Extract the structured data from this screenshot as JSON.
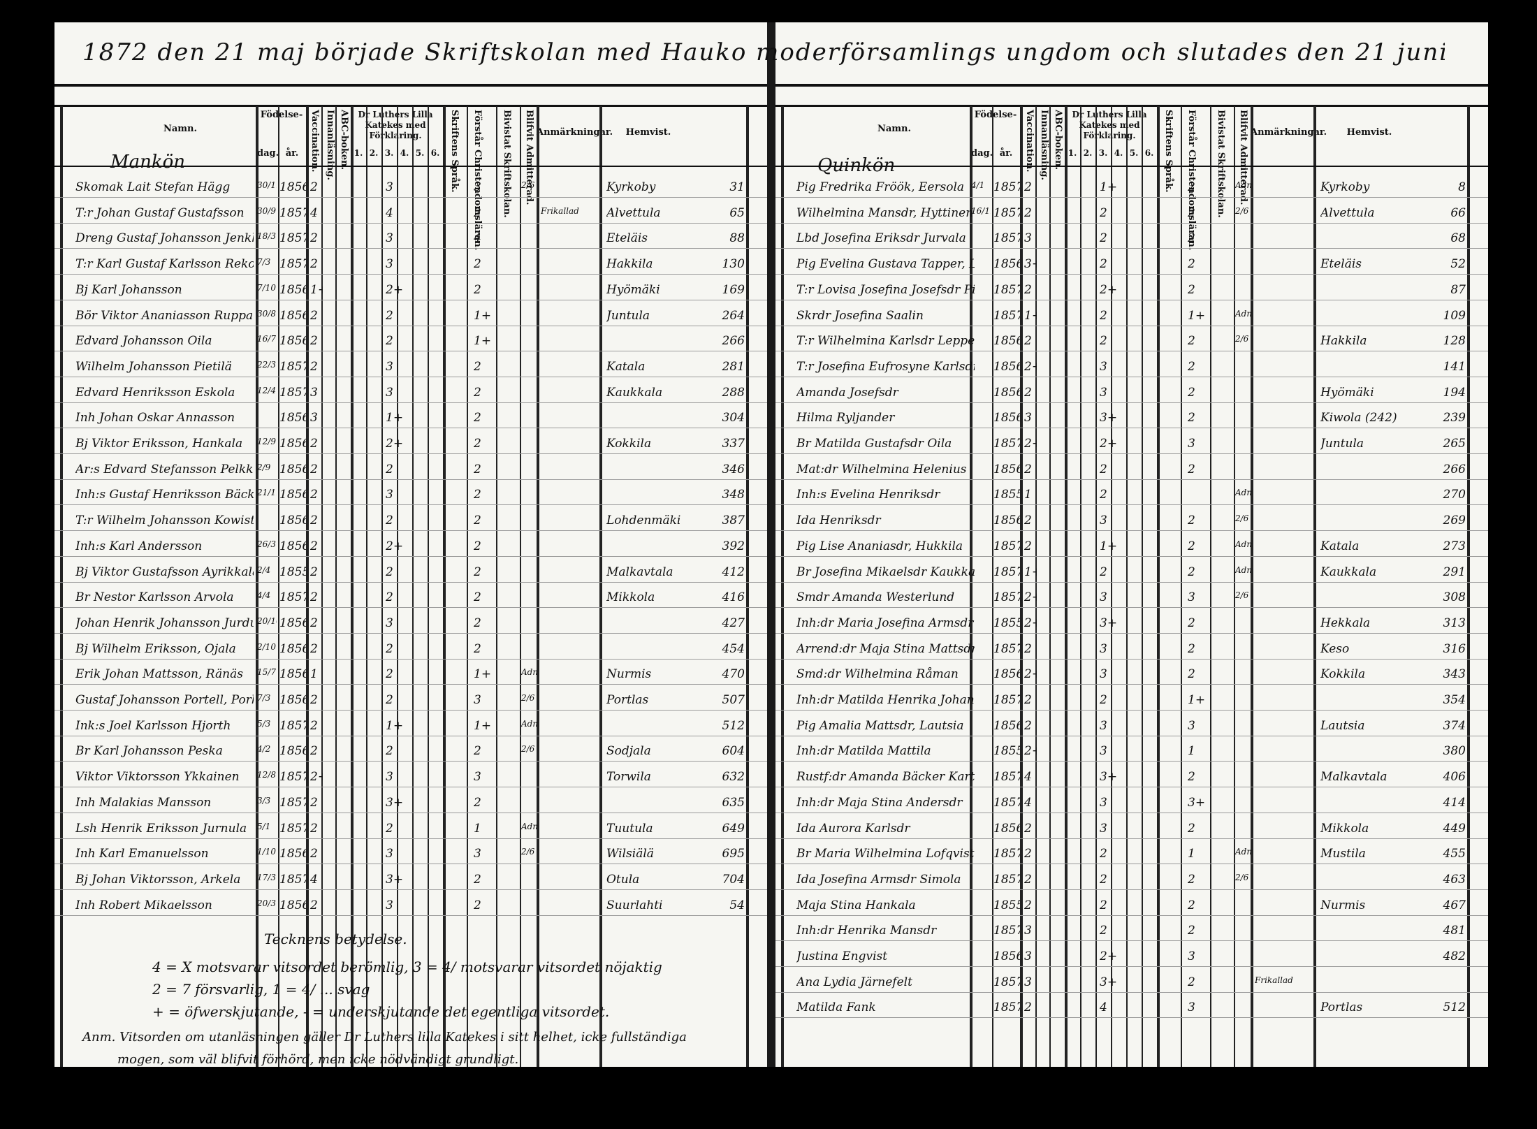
{
  "title": "1872 den 21 maj började Skriftskolan med Hauko moderförsamlings ungdom och slutades den 21 juni samma år.",
  "headers": {
    "namn": "Namn.",
    "fodelse": "Födelse-",
    "dag": "dag.",
    "ar": "år.",
    "vaccination": "Vaccination.",
    "inmalasning": "Innanläsning.",
    "abc": "ABC-boken.",
    "katekes": "Dr Luthers Lilla Katekes med Förklaring.",
    "kat_cols": [
      "1.",
      "2.",
      "3.",
      "4.",
      "5.",
      "6."
    ],
    "skriftens": "Skriftens Språk.",
    "forstar": "Förstår Christendomsläran.",
    "bivistat": "Bivistat Skriftskolan.",
    "blifvit": "Blifvit Admitterad.",
    "anmarkningar": "Anmärkningar.",
    "hemvist": "Hemvist."
  },
  "left": {
    "section": "Mankön",
    "rows": [
      {
        "name": "Skomak Lait Stefan Hägg",
        "dag": "30/11",
        "ar": "1856",
        "inn": "2",
        "kat": "3",
        "forst": "3",
        "adm": "2/6",
        "hemvist": "Kyrkoby",
        "nr": "31"
      },
      {
        "name": "T:r Johan Gustaf Gustafsson",
        "dag": "30/9",
        "ar": "1857",
        "inn": "4",
        "kat": "4",
        "forst": "2",
        "adm": "",
        "anm": "Frikallad",
        "hemvist": "Alvettula",
        "nr": "65"
      },
      {
        "name": "Dreng Gustaf Johansson Jenkka",
        "dag": "18/3",
        "ar": "1857",
        "inn": "2",
        "kat": "3",
        "forst": "4",
        "adm": "",
        "hemvist": "Eteläis",
        "nr": "88"
      },
      {
        "name": "T:r Karl Gustaf Karlsson Rekola",
        "dag": "7/3",
        "ar": "1857",
        "inn": "2",
        "kat": "3",
        "forst": "2",
        "adm": "",
        "hemvist": "Hakkila",
        "nr": "130"
      },
      {
        "name": "Bj Karl Johansson",
        "dag": "7/10",
        "ar": "1856",
        "inn": "1+",
        "kat": "2+",
        "forst": "2",
        "adm": "",
        "hemvist": "Hyömäki",
        "nr": "169"
      },
      {
        "name": "Bör Viktor Ananiasson Ruppa",
        "dag": "30/8",
        "ar": "1856",
        "inn": "2",
        "kat": "2",
        "forst": "1+",
        "adm": "",
        "hemvist": "Juntula",
        "nr": "264"
      },
      {
        "name": "Edvard Johansson Oila",
        "dag": "16/7",
        "ar": "1856",
        "inn": "2",
        "kat": "2",
        "forst": "1+",
        "adm": "",
        "hemvist": "",
        "nr": "266"
      },
      {
        "name": "Wilhelm Johansson Pietilä",
        "dag": "22/3",
        "ar": "1857",
        "inn": "2",
        "kat": "3",
        "forst": "2",
        "adm": "",
        "hemvist": "Katala",
        "nr": "281"
      },
      {
        "name": "Edvard Henriksson Eskola",
        "dag": "12/4",
        "ar": "1857",
        "inn": "3",
        "kat": "3",
        "forst": "2",
        "adm": "",
        "hemvist": "Kaukkala",
        "nr": "288"
      },
      {
        "name": "Inh Johan Oskar Annasson",
        "dag": "",
        "ar": "1856",
        "inn": "3",
        "kat": "1+",
        "forst": "2",
        "adm": "",
        "hemvist": "",
        "nr": "304"
      },
      {
        "name": "Bj Viktor Eriksson, Hankala",
        "dag": "12/9",
        "ar": "1856",
        "inn": "2",
        "kat": "2+",
        "forst": "2",
        "adm": "",
        "hemvist": "Kokkila",
        "nr": "337"
      },
      {
        "name": "Ar:s Edvard Stefansson Pelkka",
        "dag": "2/9",
        "ar": "1856",
        "inn": "2",
        "kat": "2",
        "forst": "2",
        "adm": "",
        "hemvist": "",
        "nr": "346"
      },
      {
        "name": "Inh:s Gustaf Henriksson Bäckström",
        "dag": "21/11",
        "ar": "1856",
        "inn": "2",
        "kat": "3",
        "forst": "2",
        "adm": "",
        "hemvist": "",
        "nr": "348"
      },
      {
        "name": "T:r Wilhelm Johansson Kowisto",
        "dag": "",
        "ar": "1856",
        "inn": "2",
        "kat": "2",
        "forst": "2",
        "adm": "",
        "hemvist": "Lohdenmäki",
        "nr": "387"
      },
      {
        "name": "Inh:s Karl Andersson",
        "dag": "26/3",
        "ar": "1856",
        "inn": "2",
        "kat": "2+",
        "forst": "2",
        "adm": "",
        "hemvist": "",
        "nr": "392"
      },
      {
        "name": "Bj Viktor Gustafsson Ayrikkala",
        "dag": "2/4",
        "ar": "1855",
        "inn": "2",
        "kat": "2",
        "forst": "2",
        "adm": "",
        "hemvist": "Malkavtala",
        "nr": "412"
      },
      {
        "name": "Br Nestor Karlsson Arvola",
        "dag": "4/4",
        "ar": "1857",
        "inn": "2",
        "kat": "2",
        "forst": "2",
        "adm": "",
        "hemvist": "Mikkola",
        "nr": "416"
      },
      {
        "name": "Johan Henrik Johansson Jurdula",
        "dag": "20/10",
        "ar": "1856",
        "inn": "2",
        "kat": "3",
        "forst": "2",
        "adm": "",
        "hemvist": "",
        "nr": "427"
      },
      {
        "name": "Bj Wilhelm Eriksson, Ojala",
        "dag": "2/10",
        "ar": "1856",
        "inn": "2",
        "kat": "2",
        "forst": "2",
        "adm": "",
        "hemvist": "",
        "nr": "454"
      },
      {
        "name": "Erik Johan Mattsson, Ränäs",
        "dag": "15/7",
        "ar": "1856",
        "inn": "1",
        "kat": "2",
        "forst": "1+",
        "adm": "Adm.",
        "hemvist": "Nurmis",
        "nr": "470"
      },
      {
        "name": "Gustaf Johansson Portell, Porkkala",
        "dag": "7/3",
        "ar": "1856",
        "inn": "2",
        "kat": "2",
        "forst": "3",
        "adm": "2/6",
        "hemvist": "Portlas",
        "nr": "507"
      },
      {
        "name": "Ink:s Joel Karlsson Hjorth",
        "dag": "5/3",
        "ar": "1857",
        "inn": "2",
        "kat": "1+",
        "forst": "1+",
        "adm": "Adm.",
        "hemvist": "",
        "nr": "512"
      },
      {
        "name": "Br Karl Johansson Peska",
        "dag": "4/2",
        "ar": "1856",
        "inn": "2",
        "kat": "2",
        "forst": "2",
        "adm": "2/6",
        "hemvist": "Sodjala",
        "nr": "604"
      },
      {
        "name": "Viktor Viktorsson Ykkainen",
        "dag": "12/8",
        "ar": "1857",
        "inn": "2+",
        "kat": "3",
        "forst": "3",
        "adm": "",
        "hemvist": "Torwila",
        "nr": "632"
      },
      {
        "name": "Inh Malakias Mansson",
        "dag": "3/3",
        "ar": "1857",
        "inn": "2",
        "kat": "3+",
        "forst": "2",
        "adm": "",
        "hemvist": "",
        "nr": "635"
      },
      {
        "name": "Lsh Henrik Eriksson Jurnula",
        "dag": "5/1",
        "ar": "1857",
        "inn": "2",
        "kat": "2",
        "forst": "1",
        "adm": "Adm.",
        "hemvist": "Tuutula",
        "nr": "649"
      },
      {
        "name": "Inh Karl Emanuelsson",
        "dag": "1/10",
        "ar": "1856",
        "inn": "2",
        "kat": "3",
        "forst": "3",
        "adm": "2/6",
        "hemvist": "Wilsiälä",
        "nr": "695"
      },
      {
        "name": "Bj Johan Viktorsson, Arkela",
        "dag": "17/3",
        "ar": "1857",
        "inn": "4",
        "kat": "3+",
        "forst": "2",
        "adm": "",
        "hemvist": "Otula",
        "nr": "704"
      },
      {
        "name": "Inh Robert Mikaelsson",
        "dag": "20/3",
        "ar": "1856",
        "inn": "2",
        "kat": "3",
        "forst": "2",
        "adm": "",
        "hemvist": "Suurlahti",
        "nr": "54"
      }
    ],
    "notes": [
      "Tecknens betydelse.",
      "4 = X motsvarar vitsordet berömlig, 3 = 4/ motsvarar vitsordet nöjaktig",
      "2 = 7 försvarlig, 1 = 4/ ... svag",
      "+ = öfwerskjutande, - = underskjutande det egentliga vitsordet.",
      "Anm. Vitsorden om utanläsningen gäller Dr Luthers lilla Katekes i sitt helhet, icke fullständiga",
      "mogen, som väl blifvit förhörd, men icke nödvändigt grundligt."
    ]
  },
  "right": {
    "section": "Quinkön",
    "rows": [
      {
        "name": "Pig Fredrika Fröök, Eersola",
        "dag": "4/1",
        "ar": "1857",
        "inn": "2",
        "kat": "1+",
        "forst": "2",
        "adm": "Adm.",
        "hemvist": "Kyrkoby",
        "nr": "8"
      },
      {
        "name": "Wilhelmina Mansdr, Hyttinen",
        "dag": "16/11",
        "ar": "1857",
        "inn": "2",
        "kat": "2",
        "forst": "2",
        "adm": "2/6",
        "hemvist": "Alvettula",
        "nr": "66"
      },
      {
        "name": "Lbd Josefina Eriksdr Jurvala",
        "dag": "",
        "ar": "1857",
        "inn": "3",
        "kat": "2",
        "forst": "2",
        "adm": "",
        "hemvist": "",
        "nr": "68"
      },
      {
        "name": "Pig Evelina Gustava Tapper, Laskala",
        "dag": "",
        "ar": "1856",
        "inn": "3+",
        "kat": "2",
        "forst": "2",
        "adm": "",
        "hemvist": "Eteläis",
        "nr": "52"
      },
      {
        "name": "T:r Lovisa Josefina Josefsdr Pietilä",
        "dag": "",
        "ar": "1857",
        "inn": "2",
        "kat": "2+",
        "forst": "2",
        "adm": "",
        "hemvist": "",
        "nr": "87"
      },
      {
        "name": "Skrdr Josefina Saalin",
        "dag": "",
        "ar": "1857",
        "inn": "1+",
        "kat": "2",
        "forst": "1+",
        "adm": "Adm.",
        "hemvist": "",
        "nr": "109"
      },
      {
        "name": "T:r Wilhelmina Karlsdr Leppen",
        "dag": "",
        "ar": "1856",
        "inn": "2",
        "kat": "2",
        "forst": "2",
        "adm": "2/6",
        "hemvist": "Hakkila",
        "nr": "128"
      },
      {
        "name": "T:r Josefina Eufrosyne Karlsdr",
        "dag": "",
        "ar": "1856",
        "inn": "2+",
        "kat": "3",
        "forst": "2",
        "adm": "",
        "hemvist": "",
        "nr": "141"
      },
      {
        "name": "Amanda Josefsdr",
        "dag": "",
        "ar": "1856",
        "inn": "2",
        "kat": "3",
        "forst": "2",
        "adm": "",
        "hemvist": "Hyömäki",
        "nr": "194"
      },
      {
        "name": "Hilma Ryljander",
        "dag": "",
        "ar": "1856",
        "inn": "3",
        "kat": "3+",
        "forst": "2",
        "adm": "",
        "hemvist": "Kiwola (242)",
        "nr": "239"
      },
      {
        "name": "Br Matilda Gustafsdr Oila",
        "dag": "",
        "ar": "1857",
        "inn": "2+",
        "kat": "2+",
        "forst": "3",
        "adm": "",
        "hemvist": "Juntula",
        "nr": "265"
      },
      {
        "name": "Mat:dr Wilhelmina Helenius",
        "dag": "",
        "ar": "1856",
        "inn": "2",
        "kat": "2",
        "forst": "2",
        "adm": "",
        "hemvist": "",
        "nr": "266"
      },
      {
        "name": "Inh:s Evelina Henriksdr",
        "dag": "",
        "ar": "1855",
        "inn": "1",
        "kat": "2",
        "forst": "",
        "adm": "Adm.",
        "hemvist": "",
        "nr": "270"
      },
      {
        "name": "Ida Henriksdr",
        "dag": "",
        "ar": "1856",
        "inn": "2",
        "kat": "3",
        "forst": "2",
        "adm": "2/6",
        "hemvist": "",
        "nr": "269"
      },
      {
        "name": "Pig Lise Ananiasdr, Hukkila",
        "dag": "",
        "ar": "1857",
        "inn": "2",
        "kat": "1+",
        "forst": "2",
        "adm": "Adm.",
        "hemvist": "Katala",
        "nr": "273"
      },
      {
        "name": "Br Josefina Mikaelsdr Kaukkala",
        "dag": "",
        "ar": "1857",
        "inn": "1+",
        "kat": "2",
        "forst": "2",
        "adm": "Adm.",
        "hemvist": "Kaukkala",
        "nr": "291"
      },
      {
        "name": "Smdr Amanda Westerlund",
        "dag": "",
        "ar": "1857",
        "inn": "2+",
        "kat": "3",
        "forst": "3",
        "adm": "2/6",
        "hemvist": "",
        "nr": "308"
      },
      {
        "name": "Inh:dr Maria Josefina Armsdr",
        "dag": "",
        "ar": "1855",
        "inn": "2+",
        "kat": "3+",
        "forst": "2",
        "adm": "",
        "hemvist": "Hekkala",
        "nr": "313"
      },
      {
        "name": "Arrend:dr Maja Stina Mattsdr",
        "dag": "",
        "ar": "1857",
        "inn": "2",
        "kat": "3",
        "forst": "2",
        "adm": "",
        "hemvist": "Keso",
        "nr": "316"
      },
      {
        "name": "Smd:dr Wilhelmina Råman",
        "dag": "",
        "ar": "1856",
        "inn": "2+",
        "kat": "3",
        "forst": "2",
        "adm": "",
        "hemvist": "Kokkila",
        "nr": "343"
      },
      {
        "name": "Inh:dr Matilda Henrika Johansdr",
        "dag": "",
        "ar": "1857",
        "inn": "2",
        "kat": "2",
        "forst": "1+",
        "adm": "",
        "hemvist": "",
        "nr": "354"
      },
      {
        "name": "Pig Amalia Mattsdr, Lautsia",
        "dag": "",
        "ar": "1856",
        "inn": "2",
        "kat": "3",
        "forst": "3",
        "adm": "",
        "hemvist": "Lautsia",
        "nr": "374"
      },
      {
        "name": "Inh:dr Matilda Mattila",
        "dag": "",
        "ar": "1855",
        "inn": "2+",
        "kat": "3",
        "forst": "1",
        "adm": "",
        "hemvist": "",
        "nr": "380"
      },
      {
        "name": "Rustf:dr Amanda Bäcker Kartano",
        "dag": "",
        "ar": "1857",
        "inn": "4",
        "kat": "3+",
        "forst": "2",
        "adm": "",
        "hemvist": "Malkavtala",
        "nr": "406"
      },
      {
        "name": "Inh:dr Maja Stina Andersdr",
        "dag": "",
        "ar": "1857",
        "inn": "4",
        "kat": "3",
        "forst": "3+",
        "adm": "",
        "hemvist": "",
        "nr": "414"
      },
      {
        "name": "Ida Aurora Karlsdr",
        "dag": "",
        "ar": "1856",
        "inn": "2",
        "kat": "3",
        "forst": "2",
        "adm": "",
        "hemvist": "Mikkola",
        "nr": "449"
      },
      {
        "name": "Br Maria Wilhelmina Lofqvist",
        "dag": "",
        "ar": "1857",
        "inn": "2",
        "kat": "2",
        "forst": "1",
        "adm": "Adm.",
        "hemvist": "Mustila",
        "nr": "455"
      },
      {
        "name": "Ida Josefina Armsdr Simola",
        "dag": "",
        "ar": "1857",
        "inn": "2",
        "kat": "2",
        "forst": "2",
        "adm": "2/6",
        "hemvist": "",
        "nr": "463"
      },
      {
        "name": "Maja Stina Hankala",
        "dag": "",
        "ar": "1855",
        "inn": "2",
        "kat": "2",
        "forst": "2",
        "adm": "",
        "hemvist": "Nurmis",
        "nr": "467"
      },
      {
        "name": "Inh:dr Henrika Mansdr",
        "dag": "",
        "ar": "1857",
        "inn": "3",
        "kat": "2",
        "forst": "2",
        "adm": "",
        "hemvist": "",
        "nr": "481"
      },
      {
        "name": "Justina Engvist",
        "dag": "",
        "ar": "1856",
        "inn": "3",
        "kat": "2+",
        "forst": "3",
        "adm": "",
        "hemvist": "",
        "nr": "482"
      },
      {
        "name": "Ana Lydia Järnefelt",
        "dag": "",
        "ar": "1857",
        "inn": "3",
        "kat": "3+",
        "forst": "2",
        "adm": "",
        "anm": "Frikallad",
        "hemvist": "",
        "nr": ""
      },
      {
        "name": "Matilda Fank",
        "dag": "",
        "ar": "1857",
        "inn": "2",
        "kat": "4",
        "forst": "3",
        "adm": "",
        "hemvist": "Portlas",
        "nr": "512"
      }
    ]
  }
}
